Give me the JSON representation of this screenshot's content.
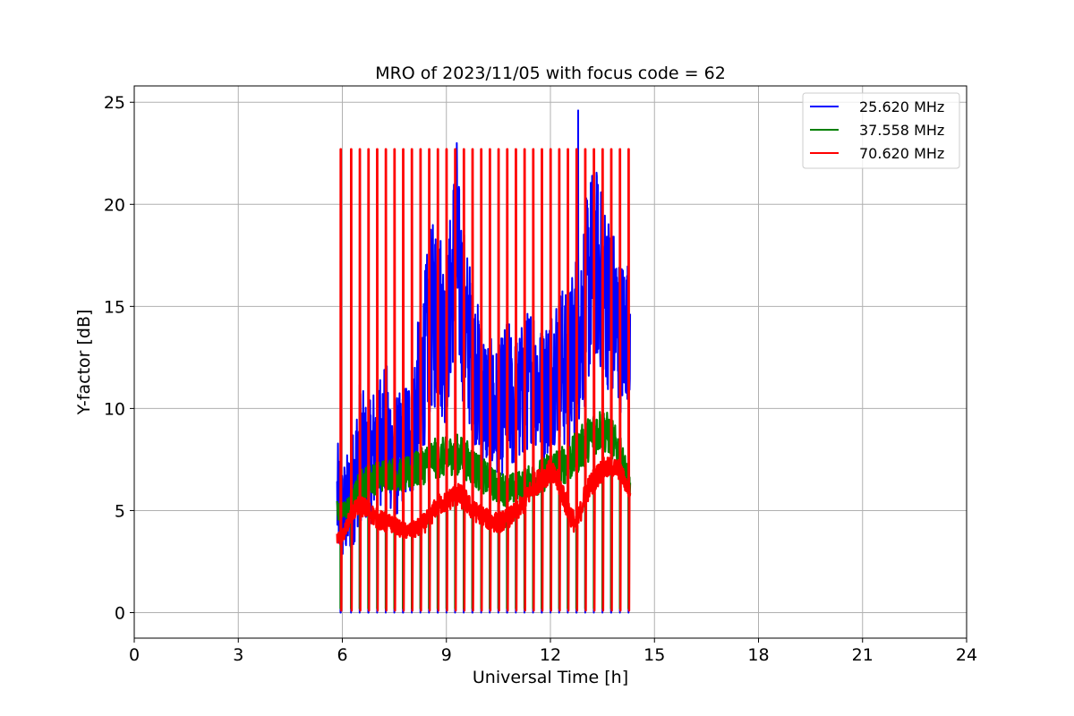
{
  "chart_data": {
    "type": "line",
    "title": "MRO of 2023/11/05 with focus code = 62",
    "xlabel": "Universal Time [h]",
    "ylabel": "Y-factor [dB]",
    "xlim": [
      0,
      24
    ],
    "ylim": [
      -1.25,
      25.8
    ],
    "xticks": [
      0,
      3,
      6,
      9,
      12,
      15,
      18,
      21,
      24
    ],
    "yticks": [
      0,
      5,
      10,
      15,
      20,
      25
    ],
    "grid": true,
    "legend_position": "top-right",
    "series": [
      {
        "name": "25.620 MHz",
        "color": "#0000ff",
        "x": [
          5.85,
          6.0,
          6.25,
          6.5,
          6.75,
          7.0,
          7.25,
          7.5,
          7.75,
          8.0,
          8.25,
          8.5,
          8.75,
          9.0,
          9.25,
          9.5,
          9.75,
          10.0,
          10.25,
          10.5,
          10.75,
          11.0,
          11.25,
          11.5,
          11.75,
          12.0,
          12.25,
          12.5,
          12.75,
          13.0,
          13.25,
          13.5,
          13.75,
          14.0,
          14.3
        ],
        "y": [
          5.5,
          4.8,
          5.5,
          8.0,
          7.0,
          8.5,
          9.0,
          7.5,
          8.0,
          9.0,
          11.0,
          14.0,
          15.0,
          13.0,
          18.0,
          14.5,
          12.5,
          11.0,
          10.0,
          9.5,
          11.0,
          10.0,
          11.0,
          12.0,
          10.5,
          11.5,
          12.5,
          11.5,
          13.5,
          15.0,
          17.5,
          16.0,
          15.0,
          13.5,
          14.0
        ],
        "band": [
          3.0,
          2.5,
          2.8,
          3.5,
          3.0,
          3.5,
          3.5,
          3.0,
          3.0,
          3.5,
          4.0,
          4.5,
          5.0,
          4.0,
          5.0,
          4.5,
          4.0,
          3.5,
          3.5,
          3.5,
          3.5,
          3.5,
          3.5,
          3.5,
          3.5,
          3.5,
          4.0,
          4.0,
          4.5,
          5.0,
          5.0,
          4.5,
          4.5,
          4.0,
          3.5
        ],
        "peaks": [
          [
            9.3,
            23.0
          ],
          [
            12.8,
            24.6
          ],
          [
            13.2,
            20.2
          ]
        ],
        "min": 0.0
      },
      {
        "name": "37.558 MHz",
        "color": "#008000",
        "x": [
          5.85,
          6.0,
          6.25,
          6.5,
          6.75,
          7.0,
          7.25,
          7.5,
          7.75,
          8.0,
          8.25,
          8.5,
          8.75,
          9.0,
          9.25,
          9.5,
          9.75,
          10.0,
          10.25,
          10.5,
          10.75,
          11.0,
          11.25,
          11.5,
          11.75,
          12.0,
          12.25,
          12.5,
          12.75,
          13.0,
          13.25,
          13.5,
          13.75,
          14.0,
          14.3
        ],
        "y": [
          5.0,
          4.9,
          5.3,
          6.2,
          6.5,
          6.6,
          6.8,
          6.8,
          6.7,
          6.9,
          7.1,
          7.4,
          7.6,
          7.6,
          7.8,
          7.6,
          7.2,
          6.8,
          6.4,
          6.1,
          6.0,
          6.1,
          6.3,
          6.5,
          6.7,
          7.1,
          7.2,
          7.3,
          7.8,
          8.3,
          8.8,
          9.0,
          8.6,
          7.8,
          6.3
        ],
        "band": [
          0.5,
          0.5,
          0.6,
          0.8,
          0.8,
          0.8,
          0.8,
          0.8,
          0.8,
          0.9,
          0.9,
          1.0,
          1.0,
          1.0,
          1.0,
          1.0,
          1.0,
          0.9,
          0.8,
          0.8,
          0.8,
          0.8,
          0.8,
          0.8,
          0.9,
          0.9,
          0.9,
          1.0,
          1.1,
          1.1,
          1.1,
          1.1,
          1.0,
          0.9,
          0.6
        ],
        "floor": 0.2
      },
      {
        "name": "70.620 MHz",
        "color": "#ff0000",
        "x": [
          5.85,
          6.0,
          6.25,
          6.5,
          6.75,
          7.0,
          7.25,
          7.5,
          7.75,
          8.0,
          8.25,
          8.5,
          8.75,
          9.0,
          9.25,
          9.5,
          9.75,
          10.0,
          10.25,
          10.5,
          10.75,
          11.0,
          11.25,
          11.5,
          11.75,
          12.0,
          12.25,
          12.5,
          12.75,
          13.0,
          13.25,
          13.5,
          13.75,
          14.0,
          14.3
        ],
        "y": [
          3.6,
          3.7,
          4.8,
          5.3,
          5.0,
          4.6,
          4.4,
          4.3,
          4.0,
          4.0,
          4.2,
          4.6,
          5.3,
          5.4,
          5.8,
          5.6,
          5.0,
          4.8,
          4.5,
          4.4,
          4.6,
          4.9,
          5.4,
          6.2,
          6.6,
          6.9,
          6.3,
          5.1,
          4.2,
          5.8,
          6.5,
          7.0,
          7.1,
          7.0,
          5.8
        ],
        "band": [
          0.3,
          0.3,
          0.4,
          0.5,
          0.5,
          0.5,
          0.5,
          0.4,
          0.4,
          0.4,
          0.5,
          0.5,
          0.5,
          0.5,
          0.6,
          0.6,
          0.5,
          0.5,
          0.5,
          0.5,
          0.5,
          0.5,
          0.5,
          0.6,
          0.6,
          0.6,
          0.6,
          0.6,
          0.5,
          0.6,
          0.6,
          0.6,
          0.5,
          0.5,
          0.4
        ],
        "spike_top": 22.7,
        "spike_times": [
          5.95,
          6.25,
          6.5,
          6.75,
          7.0,
          7.25,
          7.5,
          7.75,
          8.0,
          8.25,
          8.5,
          8.75,
          9.0,
          9.25,
          9.5,
          9.75,
          10.0,
          10.25,
          10.5,
          10.75,
          11.0,
          11.25,
          11.5,
          11.75,
          12.0,
          12.25,
          12.5,
          12.75,
          13.0,
          13.25,
          13.5,
          13.75,
          14.0,
          14.25
        ],
        "spike_floor": 0.1
      }
    ]
  }
}
